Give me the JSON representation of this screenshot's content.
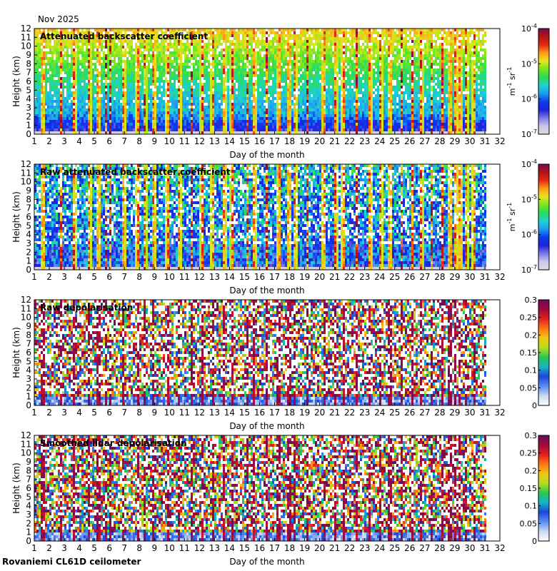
{
  "header": {
    "month_label": "Nov 2025"
  },
  "footer": {
    "instrument": "Rovaniemi CL61D ceilometer"
  },
  "chart_data": [
    {
      "type": "heatmap",
      "title": "Attenuated backscatter coefficient",
      "xlabel": "Day of the month",
      "ylabel": "Height (km)",
      "xlim": [
        1,
        32
      ],
      "ylim": [
        0,
        12
      ],
      "x_ticks": [
        "1",
        "2",
        "3",
        "4",
        "5",
        "6",
        "7",
        "8",
        "9",
        "10",
        "11",
        "12",
        "13",
        "14",
        "15",
        "16",
        "17",
        "18",
        "19",
        "20",
        "21",
        "22",
        "23",
        "24",
        "25",
        "26",
        "27",
        "28",
        "29",
        "30",
        "31",
        "32"
      ],
      "y_ticks": [
        "0",
        "1",
        "2",
        "3",
        "4",
        "5",
        "6",
        "7",
        "8",
        "9",
        "10",
        "11",
        "12"
      ],
      "colorbar": {
        "scale": "log",
        "range": [
          1e-07,
          0.0001
        ],
        "tick_base": "10",
        "tick_exponents": [
          "-4",
          "-5",
          "-6",
          "-7"
        ],
        "unit": "m-1 sr-1",
        "unit_parts": [
          "m",
          "-1",
          " sr",
          "-1"
        ]
      },
      "data_end_day": 31
    },
    {
      "type": "heatmap",
      "title": "Raw attenuated backscatter coefficient",
      "xlabel": "Day of the month",
      "ylabel": "Height (km)",
      "xlim": [
        1,
        32
      ],
      "ylim": [
        0,
        12
      ],
      "x_ticks": [
        "1",
        "2",
        "3",
        "4",
        "5",
        "6",
        "7",
        "8",
        "9",
        "10",
        "11",
        "12",
        "13",
        "14",
        "15",
        "16",
        "17",
        "18",
        "19",
        "20",
        "21",
        "22",
        "23",
        "24",
        "25",
        "26",
        "27",
        "28",
        "29",
        "30",
        "31",
        "32"
      ],
      "y_ticks": [
        "0",
        "1",
        "2",
        "3",
        "4",
        "5",
        "6",
        "7",
        "8",
        "9",
        "10",
        "11",
        "12"
      ],
      "colorbar": {
        "scale": "log",
        "range": [
          1e-07,
          0.0001
        ],
        "tick_base": "10",
        "tick_exponents": [
          "-4",
          "-5",
          "-6",
          "-7"
        ],
        "unit": "m-1 sr-1",
        "unit_parts": [
          "m",
          "-1",
          " sr",
          "-1"
        ]
      },
      "data_end_day": 31
    },
    {
      "type": "heatmap",
      "title": "Raw depolarisation",
      "xlabel": "Day of the month",
      "ylabel": "Height (km)",
      "xlim": [
        1,
        32
      ],
      "ylim": [
        0,
        12
      ],
      "x_ticks": [
        "1",
        "2",
        "3",
        "4",
        "5",
        "6",
        "7",
        "8",
        "9",
        "10",
        "11",
        "12",
        "13",
        "14",
        "15",
        "16",
        "17",
        "18",
        "19",
        "20",
        "21",
        "22",
        "23",
        "24",
        "25",
        "26",
        "27",
        "28",
        "29",
        "30",
        "31",
        "32"
      ],
      "y_ticks": [
        "0",
        "1",
        "2",
        "3",
        "4",
        "5",
        "6",
        "7",
        "8",
        "9",
        "10",
        "11",
        "12"
      ],
      "colorbar": {
        "scale": "linear",
        "range": [
          0,
          0.3
        ],
        "ticks": [
          "0.3",
          "0.25",
          "0.2",
          "0.15",
          "0.1",
          "0.05",
          "0"
        ]
      },
      "data_end_day": 31
    },
    {
      "type": "heatmap",
      "title": "Smoothed lidar depolarisation",
      "xlabel": "Day of the month",
      "ylabel": "Height (km)",
      "xlim": [
        1,
        32
      ],
      "ylim": [
        0,
        12
      ],
      "x_ticks": [
        "1",
        "2",
        "3",
        "4",
        "5",
        "6",
        "7",
        "8",
        "9",
        "10",
        "11",
        "12",
        "13",
        "14",
        "15",
        "16",
        "17",
        "18",
        "19",
        "20",
        "21",
        "22",
        "23",
        "24",
        "25",
        "26",
        "27",
        "28",
        "29",
        "30",
        "31",
        "32"
      ],
      "y_ticks": [
        "0",
        "1",
        "2",
        "3",
        "4",
        "5",
        "6",
        "7",
        "8",
        "9",
        "10",
        "11",
        "12"
      ],
      "colorbar": {
        "scale": "linear",
        "range": [
          0,
          0.3
        ],
        "ticks": [
          "0.3",
          "0.25",
          "0.2",
          "0.15",
          "0.1",
          "0.05",
          "0"
        ]
      },
      "data_end_day": 31
    }
  ]
}
